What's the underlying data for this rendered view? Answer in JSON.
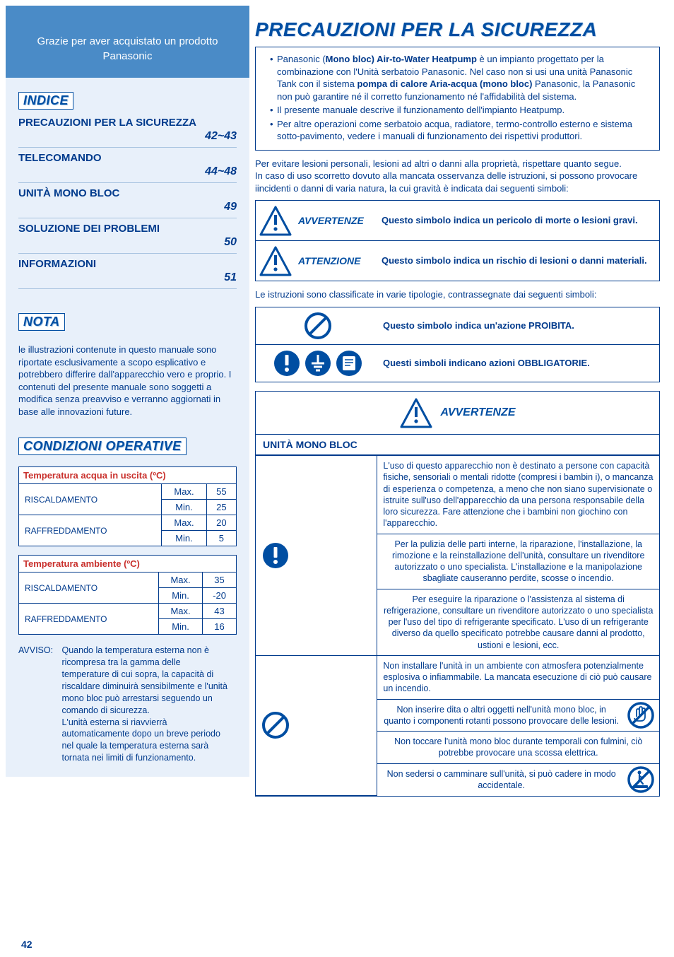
{
  "sidebar": {
    "thank_you": "Grazie per aver acquistato un prodotto Panasonic",
    "indice_label": "INDICE",
    "toc": [
      {
        "title": "PRECAUZIONI PER LA SICUREZZA",
        "pages": "42~43"
      },
      {
        "title": "TELECOMANDO",
        "pages": "44~48"
      },
      {
        "title": "UNITÀ MONO BLOC",
        "pages": "49"
      },
      {
        "title": "SOLUZIONE DEI PROBLEMI",
        "pages": "50"
      },
      {
        "title": "INFORMAZIONI",
        "pages": "51"
      }
    ],
    "nota_label": "NOTA",
    "nota_text": "le illustrazioni contenute in questo manuale sono riportate esclusivamente a scopo esplicativo e potrebbero differire dall'apparecchio vero e proprio. I contenuti del presente manuale sono soggetti a modifica senza preavviso e verranno aggiornati in base alle innovazioni future.",
    "cond_label": "CONDIZIONI OPERATIVE",
    "table_water": {
      "header": "Temperatura acqua in uscita (ºC)",
      "rows": [
        {
          "mode": "RISCALDAMENTO",
          "max": "55",
          "min": "25"
        },
        {
          "mode": "RAFFREDDAMENTO",
          "max": "20",
          "min": "5"
        }
      ]
    },
    "table_ambient": {
      "header": "Temperatura ambiente (ºC)",
      "rows": [
        {
          "mode": "RISCALDAMENTO",
          "max": "35",
          "min": "-20"
        },
        {
          "mode": "RAFFREDDAMENTO",
          "max": "43",
          "min": "16"
        }
      ]
    },
    "col_max": "Max.",
    "col_min": "Min.",
    "avviso_label": "AVVISO:",
    "avviso_text": "Quando la temperatura esterna non è ricompresa tra la gamma delle temperature di cui sopra, la capacità di riscaldare diminuirà sensibilmente e l'unità mono bloc può arrestarsi seguendo un comando di sicurezza.\nL'unità esterna si riavvierrà automaticamente dopo un breve periodo nel quale la temperatura esterna sarà tornata nei limiti di funzionamento.",
    "page_number": "42"
  },
  "main": {
    "title": "PRECAUZIONI PER LA SICUREZZA",
    "intro_bullets": [
      "Panasonic (<b>Mono bloc) Air-to-Water Heatpump</b> è un impianto progettato per la combinazione con l'Unità serbatoio Panasonic. Nel caso non si usi una unità Panasonic Tank con il sistema <b>pompa di calore Aria-acqua (mono bloc)</b> Panasonic, la Panasonic non può garantire né il corretto funzionamento né l'affidabilità del sistema.",
      "Il presente manuale descrive il funzionamento dell'impianto Heatpump.",
      "Per altre operazioni come serbatoio acqua, radiatore, termo-controllo esterno e sistema sotto-pavimento, vedere i manuali di funzionamento dei rispettivi produttori."
    ],
    "intro_para": "Per evitare lesioni personali, lesioni ad altri o danni alla proprietà, rispettare quanto segue.\nIn caso di uso scorretto dovuto alla mancata osservanza delle istruzioni, si possono provocare iincidenti o danni di varia natura, la cui gravità è indicata dai seguenti simboli:",
    "warning_label": "AVVERTENZE",
    "warning_desc": "Questo simbolo indica un pericolo di morte o lesioni gravi.",
    "caution_label": "ATTENZIONE",
    "caution_desc": "Questo simbolo indica un rischio di lesioni o danni materiali.",
    "class_text": "Le istruzioni sono classificate in varie tipologie, contrassegnate dai seguenti simboli:",
    "prohibited_desc": "Questo simbolo indica un'azione PROIBITA.",
    "mandatory_desc": "Questi simboli indicano azioni OBBLIGATORIE.",
    "section_head": "UNITÀ MONO BLOC",
    "warn_rows": {
      "mandatory": [
        "L'uso di questo apparecchio non è destinato a persone con capacità fisiche, sensoriali o mentali ridotte (compresi i bambin i), o mancanza di esperienza o competenza, a meno che non siano supervisionate o istruite sull'uso dell'apparecchio da una persona responsabile della loro sicurezza. Fare attenzione che i bambini non giochino con l'apparecchio.",
        "Per la pulizia delle parti interne, la riparazione, l'installazione, la rimozione e la reinstallazione dell'unità, consultare un rivenditore autorizzato o uno specialista. L'installazione e la manipolazione sbagliate causeranno perdite, scosse o incendio.",
        "Per eseguire la riparazione o l'assistenza al sistema di refrigerazione, consultare un rivenditore autorizzato o uno specialista per l'uso del tipo di refrigerante specificato. L'uso di un refrigerante diverso da quello specificato potrebbe causare danni al prodotto, ustioni e lesioni, ecc."
      ],
      "prohibited": [
        {
          "text": "Non installare l'unità in un ambiente con atmosfera potenzialmente esplosiva o infiammabile. La mancata esecuzione di ciò può causare un incendio.",
          "badge": null
        },
        {
          "text": "Non inserire dita o altri oggetti nell'unità mono bloc, in quanto i componenti rotanti possono provocare delle lesioni.",
          "badge": "no-hand"
        },
        {
          "text": "Non toccare l'unità mono bloc durante temporali con fulmini, ciò potrebbe provocare una scossa elettrica.",
          "badge": null
        },
        {
          "text": "Non sedersi o camminare sull'unità, si può cadere in modo accidentale.",
          "badge": "no-step"
        }
      ]
    }
  },
  "colors": {
    "brand_blue": "#004ea2",
    "text_blue": "#003a8c",
    "sidebar_bg": "#e8f0fa",
    "header_blue": "#4a8bc7",
    "red": "#c9302c"
  }
}
